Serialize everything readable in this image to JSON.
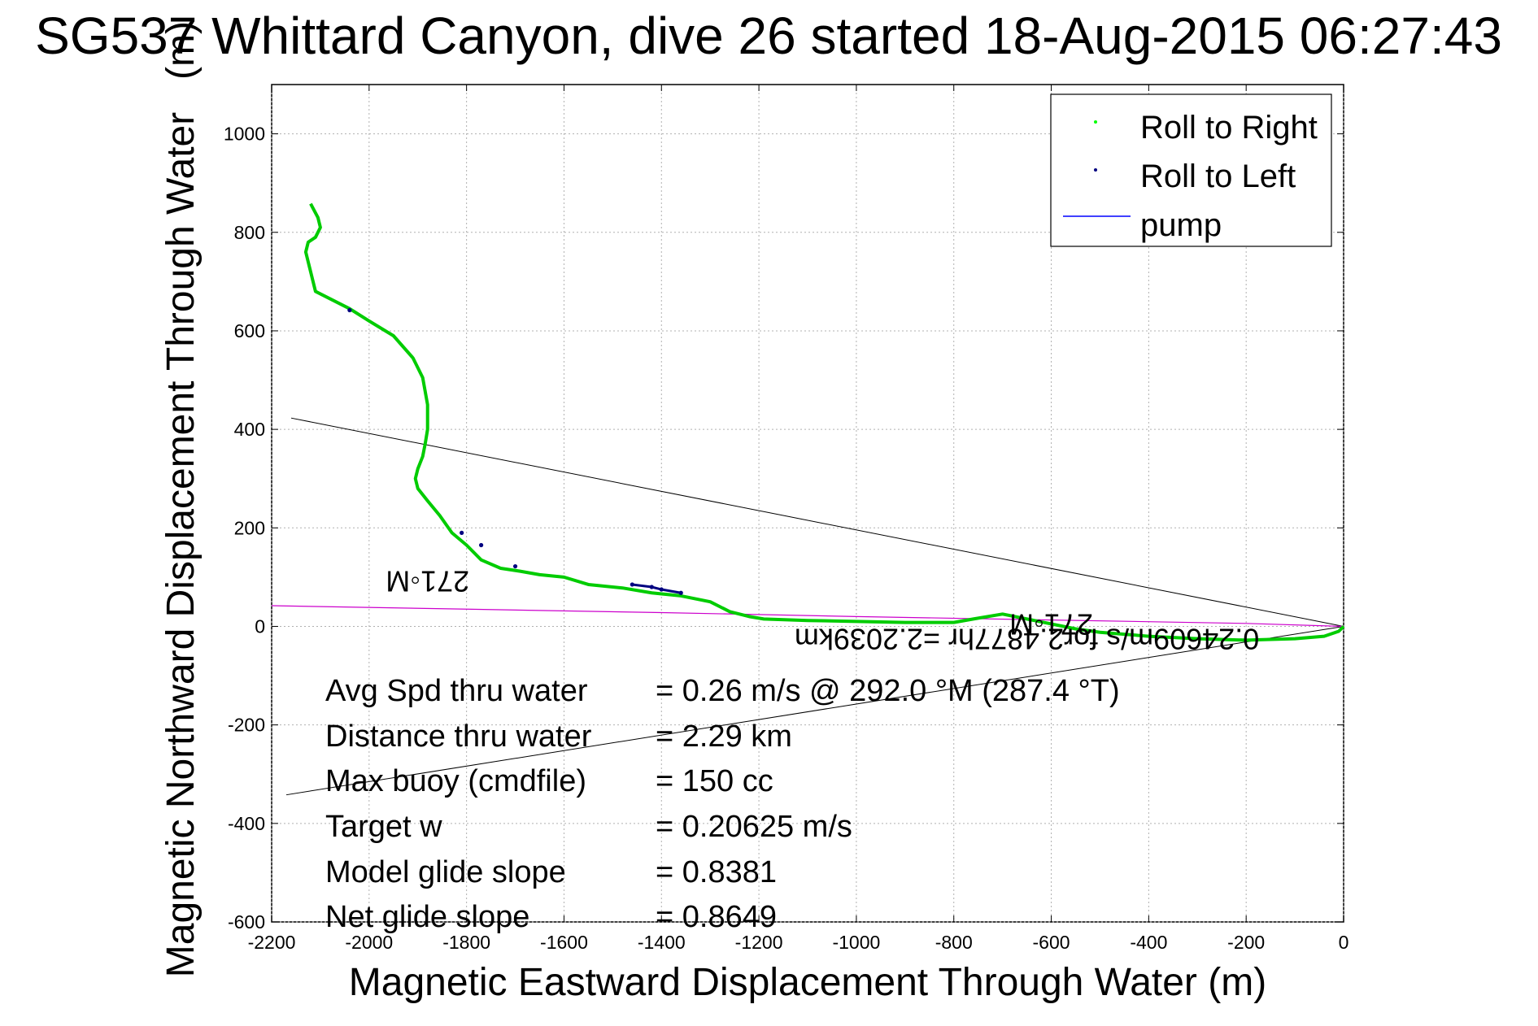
{
  "chart_data": {
    "type": "line",
    "title": "SG537 Whittard Canyon, dive 26 started 18-Aug-2015 06:27:43",
    "overlay_title_fragment": "(m)",
    "xlabel": "Magnetic Eastward Displacement Through Water (m)",
    "ylabel": "Magnetic Northward Displacement Through Water",
    "xlim": [
      -2200,
      0
    ],
    "ylim": [
      -600,
      1100
    ],
    "xticks": [
      -2200,
      -2000,
      -1800,
      -1600,
      -1400,
      -1200,
      -1000,
      -800,
      -600,
      -400,
      -200,
      0
    ],
    "yticks": [
      -600,
      -400,
      -200,
      0,
      200,
      400,
      600,
      800,
      1000
    ],
    "grid": true,
    "legend_position": "top-right",
    "legend": [
      {
        "label": "Roll to Right",
        "color": "#00ff00",
        "marker": "dot"
      },
      {
        "label": "Roll to Left",
        "color": "#000080",
        "marker": "dot"
      },
      {
        "label": "pump",
        "color": "#0000ff",
        "marker": "line"
      }
    ],
    "series": [
      {
        "name": "Roll to Right",
        "color": "#00cc00",
        "x": [
          -2120,
          -2105,
          -2100,
          -2110,
          -2125,
          -2130,
          -2120,
          -2110,
          -2080,
          -2040,
          -2000,
          -1950,
          -1910,
          -1890,
          -1880,
          -1880,
          -1885,
          -1890,
          -1900,
          -1905,
          -1900,
          -1880,
          -1855,
          -1830,
          -1800,
          -1770,
          -1730,
          -1690,
          -1650,
          -1600,
          -1550,
          -1480,
          -1420,
          -1360,
          -1300,
          -1260,
          -1220,
          -1190,
          -1100,
          -1000,
          -900,
          -800,
          -760,
          -700,
          -650,
          -600,
          -550,
          -500,
          -400,
          -300,
          -200,
          -100,
          -40,
          -10,
          0
        ],
        "y": [
          858,
          830,
          810,
          790,
          780,
          760,
          720,
          680,
          665,
          645,
          620,
          590,
          545,
          505,
          450,
          400,
          370,
          345,
          320,
          300,
          280,
          255,
          225,
          190,
          165,
          135,
          118,
          112,
          105,
          100,
          85,
          78,
          68,
          62,
          50,
          30,
          20,
          15,
          12,
          10,
          8,
          8,
          15,
          25,
          15,
          5,
          -5,
          -12,
          -20,
          -25,
          -28,
          -25,
          -20,
          -10,
          0
        ]
      },
      {
        "name": "Roll to Left",
        "color": "#000080",
        "x": [
          -2040,
          -1810,
          -1770,
          -1700,
          -1460,
          -1420,
          -1400,
          -1360
        ],
        "y": [
          642,
          190,
          165,
          122,
          85,
          80,
          75,
          68
        ]
      },
      {
        "name": "pump",
        "color": "#cc00cc",
        "x": [
          -2200,
          -1800,
          -1400,
          -1000,
          -600,
          -200,
          0
        ],
        "y": [
          42,
          35,
          28,
          20,
          13,
          6,
          0
        ]
      }
    ],
    "reference_lines": [
      {
        "x": [
          -2160,
          0
        ],
        "y": [
          423,
          0
        ],
        "color": "#000000"
      },
      {
        "x": [
          -2170,
          0
        ],
        "y": [
          -342,
          0
        ],
        "color": "#000000"
      }
    ],
    "annotations": [
      {
        "text": "271◦M",
        "x": -1880,
        "y": 112,
        "rotated": 180
      },
      {
        "text": "271◦M",
        "x": -600,
        "y": 25,
        "rotated": 180
      },
      {
        "text": "0.24609m/s for2.4877hr =2.2039km",
        "x": -650,
        "y": -5,
        "rotated": 180
      }
    ]
  },
  "stats": [
    {
      "label": "Avg Spd thru water",
      "value": "=  0.26 m/s @ 292.0 °M (287.4 °T)"
    },
    {
      "label": "Distance thru water",
      "value": "=  2.29 km"
    },
    {
      "label": "Max buoy (cmdfile)",
      "value": "= 150 cc"
    },
    {
      "label": "Target w",
      "value": "= 0.20625 m/s"
    },
    {
      "label": "Model glide slope",
      "value": "= 0.8381"
    },
    {
      "label": "Net glide slope",
      "value": "= 0.8649"
    }
  ]
}
